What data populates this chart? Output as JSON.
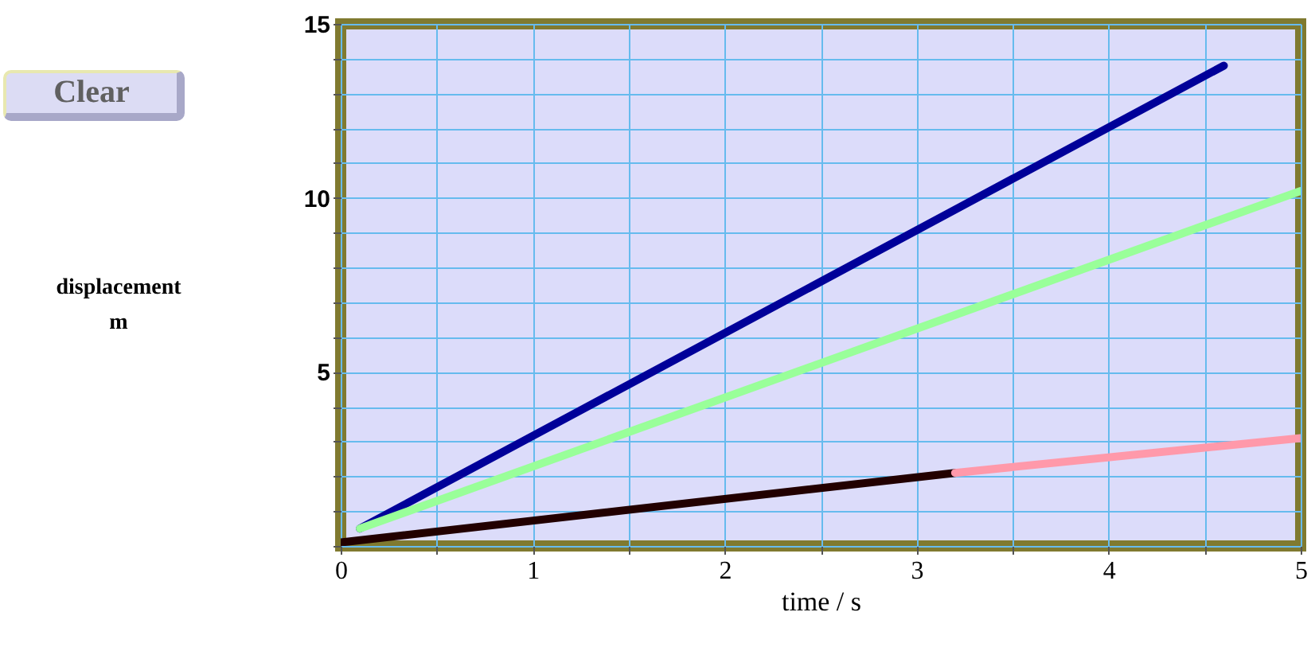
{
  "chart_data": {
    "type": "line",
    "xlabel": "time / s",
    "ylabel": [
      "displacement",
      "m"
    ],
    "annotations": [
      "Clear"
    ],
    "xlim": [
      0,
      5
    ],
    "ylim": [
      0,
      15
    ],
    "xticks": [
      0,
      {
        "value": 0.5,
        "label": null
      },
      1,
      {
        "value": 1.5,
        "label": null
      },
      2,
      {
        "value": 2.5,
        "label": null
      },
      3,
      {
        "value": 3.5,
        "label": null
      },
      4,
      {
        "value": 4.5,
        "label": null
      },
      5
    ],
    "yticks": [
      {
        "value": 0,
        "label": null
      },
      {
        "value": 1,
        "label": null
      },
      {
        "value": 2,
        "label": null
      },
      {
        "value": 3,
        "label": null
      },
      {
        "value": 4,
        "label": null
      },
      5,
      {
        "value": 6,
        "label": null
      },
      {
        "value": 7,
        "label": null
      },
      {
        "value": 8,
        "label": null
      },
      {
        "value": 9,
        "label": null
      },
      10,
      {
        "value": 11,
        "label": null
      },
      {
        "value": 12,
        "label": null
      },
      {
        "value": 13,
        "label": null
      },
      {
        "value": 14,
        "label": null
      },
      15
    ],
    "grid": true,
    "line_style": "solid",
    "marker": "none",
    "series": [
      {
        "color": "#000099",
        "x": [
          0.1,
          4.6
        ],
        "values": [
          0.5,
          13.8
        ]
      },
      {
        "color": "#99ff99",
        "x": [
          0.1,
          5
        ],
        "values": [
          0.5,
          10.2
        ]
      },
      {
        "color": "#220000",
        "x": [
          0,
          3.2
        ],
        "values": [
          0.1,
          2.1
        ]
      },
      {
        "color": "#ff99aa",
        "x": [
          3.2,
          5
        ],
        "values": [
          2.1,
          3.1
        ]
      }
    ]
  }
}
